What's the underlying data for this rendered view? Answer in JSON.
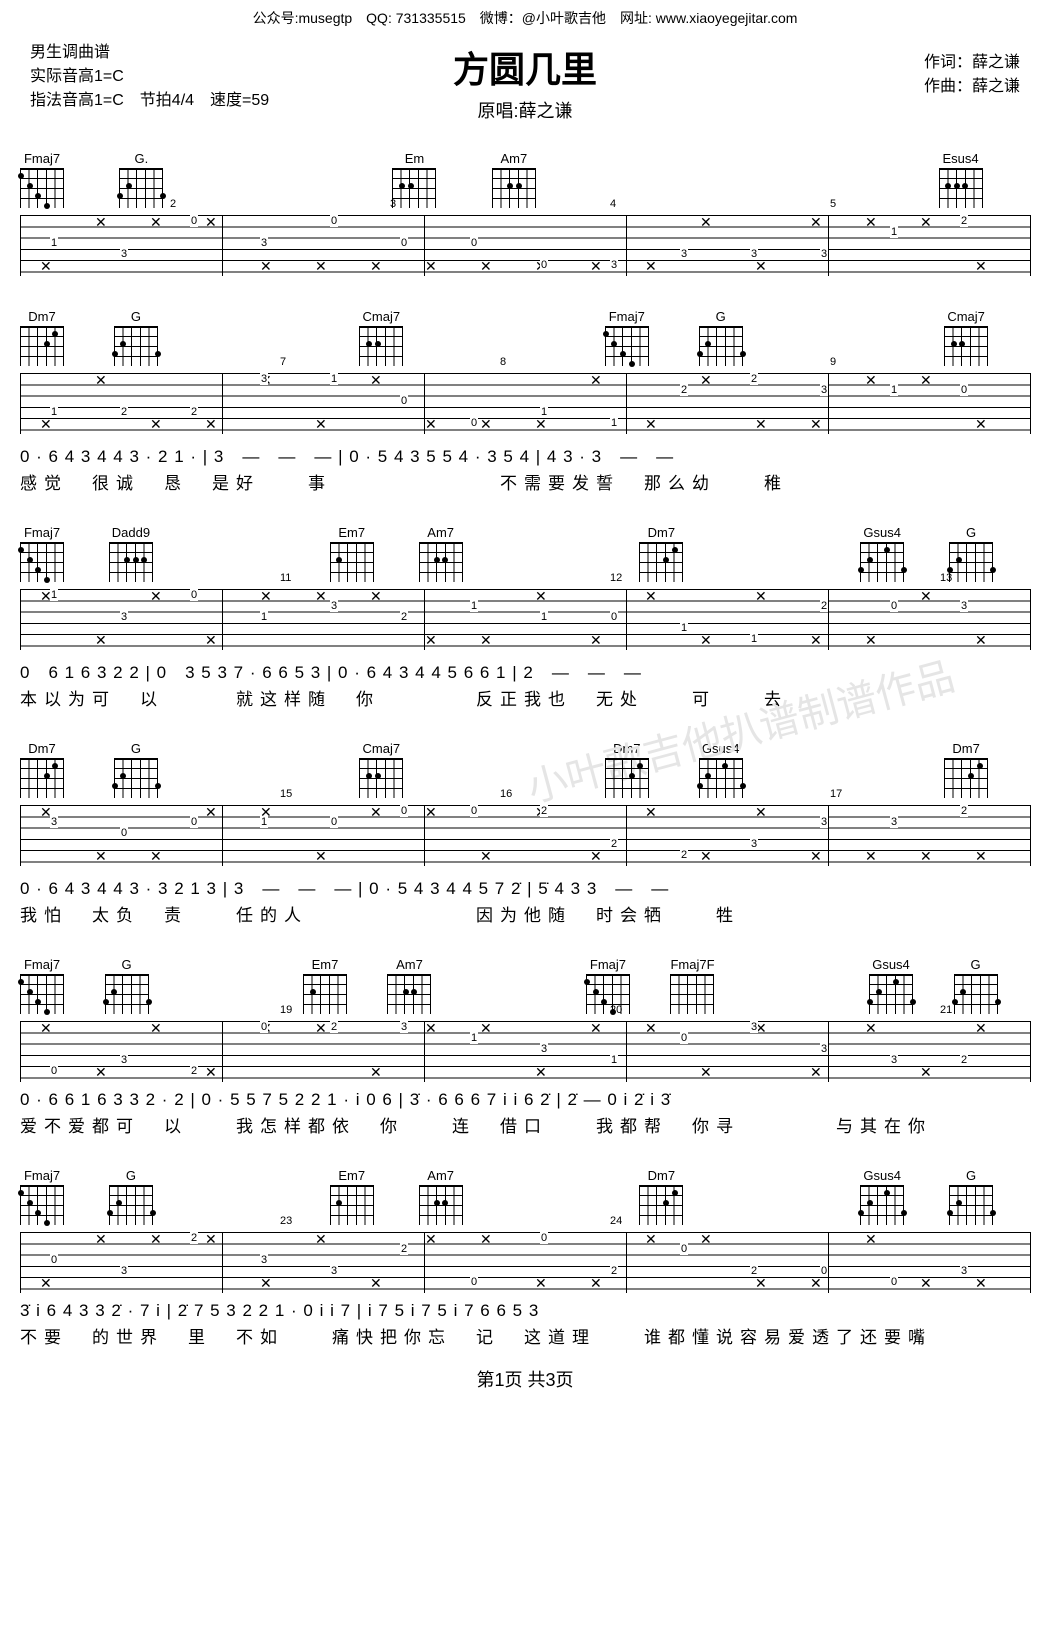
{
  "top_line": "公众号:musegtp　QQ: 731335515　微博：@小叶歌吉他　网址: www.xiaoyegejitar.com",
  "title": "方圆几里",
  "subtitle": "原唱:薛之谦",
  "voice_label": "男生调曲谱",
  "key_actual": "实际音高1=C",
  "key_finger": "指法音高1=C　节拍4/4　速度=59",
  "lyricist": "作词：薛之谦",
  "composer": "作曲：薛之谦",
  "chords": {
    "Fmaj7": "Fmaj7",
    "G": "G",
    "G.": "G.",
    "Em": "Em",
    "Am7": "Am7",
    "Esus4": "Esus4",
    "Dm7": "Dm7",
    "Cmaj7": "Cmaj7",
    "Dadd9": "Dadd9",
    "Em7": "Em7",
    "Gsus4": "Gsus4",
    "Fmaj7F": "Fmaj7/#F"
  },
  "systems": [
    {
      "chords": [
        "Fmaj7",
        "G.",
        "",
        "Em",
        "Am7",
        "",
        "",
        "Esus4"
      ],
      "barnums": [
        "",
        "2",
        "",
        "3",
        "",
        "4",
        "",
        "5"
      ],
      "notation": "",
      "lyrics": ""
    },
    {
      "chords": [
        "Dm7",
        "G",
        "",
        "Cmaj7",
        "",
        "Fmaj7",
        "G",
        "",
        "Cmaj7"
      ],
      "barnums": [
        "",
        "",
        "7",
        "",
        "8",
        "",
        "",
        "9",
        ""
      ],
      "notation": "0 · 6 4  3 4 4 3 · 2 1 ·  |  3　—　—　—  |  0 · 5 4  3 5 5 4 · 3 5 4  |  4 3 · 3　—　—",
      "lyrics": "感觉　很诚　恳　是好　　事　　　　　　　不需要发誓　那么幼　　稚"
    },
    {
      "chords": [
        "Fmaj7",
        "Dadd9",
        "",
        "Em7",
        "Am7",
        "",
        "Dm7",
        "",
        "Gsus4",
        "G"
      ],
      "barnums": [
        "",
        "",
        "11",
        "",
        "",
        "12",
        "",
        "",
        "13",
        ""
      ],
      "notation": "0　6 1 6 3 2  2  |  0　3 5 3 7 · 6 6  5 3  |  0 · 6 4  3 4 4 5 6 6  1  |  2　—　—　—",
      "lyrics": "本以为可　以　　　就这样随　你　　　　反正我也　无处　　可　　去"
    },
    {
      "chords": [
        "Dm7",
        "G",
        "",
        "Cmaj7",
        "",
        "Dm7",
        "Gsus4",
        "",
        "Dm7"
      ],
      "barnums": [
        "",
        "",
        "15",
        "",
        "16",
        "",
        "",
        "17",
        ""
      ],
      "notation": "0 · 6 4  3 4 4 3 · 3 2 1 3  |  3　—　—　—  |  0 · 5 4  3 4 4 5 7 2̇  |  5̇ 4 3 3　—　—",
      "lyrics": "我怕　太负　责　　任的人　　　　　　　因为他随　时会牺　　牲"
    },
    {
      "chords": [
        "Fmaj7",
        "G",
        "",
        "Em7",
        "Am7",
        "",
        "Fmaj7",
        "Fmaj7F",
        "",
        "Gsus4",
        "G"
      ],
      "barnums": [
        "",
        "",
        "19",
        "",
        "",
        "20",
        "",
        "",
        "21",
        "",
        ""
      ],
      "notation": "0 · 6 6 1 6 3 3 2 · 2  |  0 · 5 5 7 5 2 2 1 · i 0 6  |  3̇ · 6 6  6 7 i i 6 2̇  |  2̇ — 0  i 2̇ i 3̇",
      "lyrics": "爱不爱都可　以　　我怎样都依　你　　连　借口　　我都帮　你寻　　　　与其在你"
    },
    {
      "chords": [
        "Fmaj7",
        "G",
        "",
        "Em7",
        "Am7",
        "",
        "Dm7",
        "",
        "Gsus4",
        "G"
      ],
      "barnums": [
        "",
        "",
        "23",
        "",
        "",
        "24",
        "",
        "",
        "",
        ""
      ],
      "notation": "3̇ i  6 4 3 3 2̇ ·  7 i  |  2̇ 7  5 3 2 2 1 ·  0 i i 7  |  i 7 5  i 7 5 i 7 6  6 5 3",
      "lyrics": "不要　的世界　里　不如　　痛快把你忘　记　这道理　　谁都懂说容易爱透了还要嘴"
    }
  ],
  "footer": "第1页 共3页",
  "watermarks": [
    "小叶歌吉他扒谱制谱作品"
  ]
}
